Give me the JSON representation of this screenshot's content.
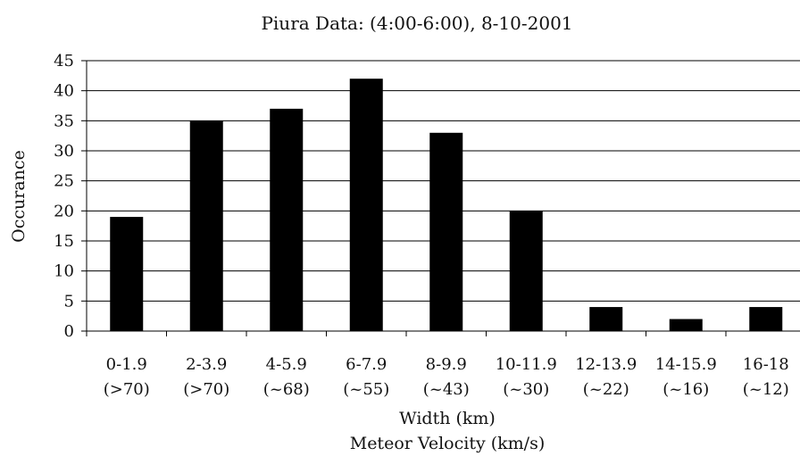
{
  "chart_data": {
    "type": "bar",
    "title": "Piura Data:  (4:00-6:00), 8-10-2001",
    "ylabel": "Occurance",
    "xlabel": "Width (km)",
    "xlabel2": "Meteor Velocity (km/s)",
    "ylim": [
      0,
      45
    ],
    "yticks": [
      0,
      5,
      10,
      15,
      20,
      25,
      30,
      35,
      40,
      45
    ],
    "categories": [
      "0-1.9",
      "2-3.9",
      "4-5.9",
      "6-7.9",
      "8-9.9",
      "10-11.9",
      "12-13.9",
      "14-15.9",
      "16-18"
    ],
    "category_sublabels": [
      "(>70)",
      "(>70)",
      "(~68)",
      "(~55)",
      "(~43)",
      "(~30)",
      "(~22)",
      "(~16)",
      "(~12)"
    ],
    "values": [
      19,
      35,
      37,
      42,
      33,
      20,
      4,
      2,
      4
    ],
    "grid": true,
    "legend": "none",
    "bar_color": "#000000",
    "grid_color": "#000000"
  }
}
